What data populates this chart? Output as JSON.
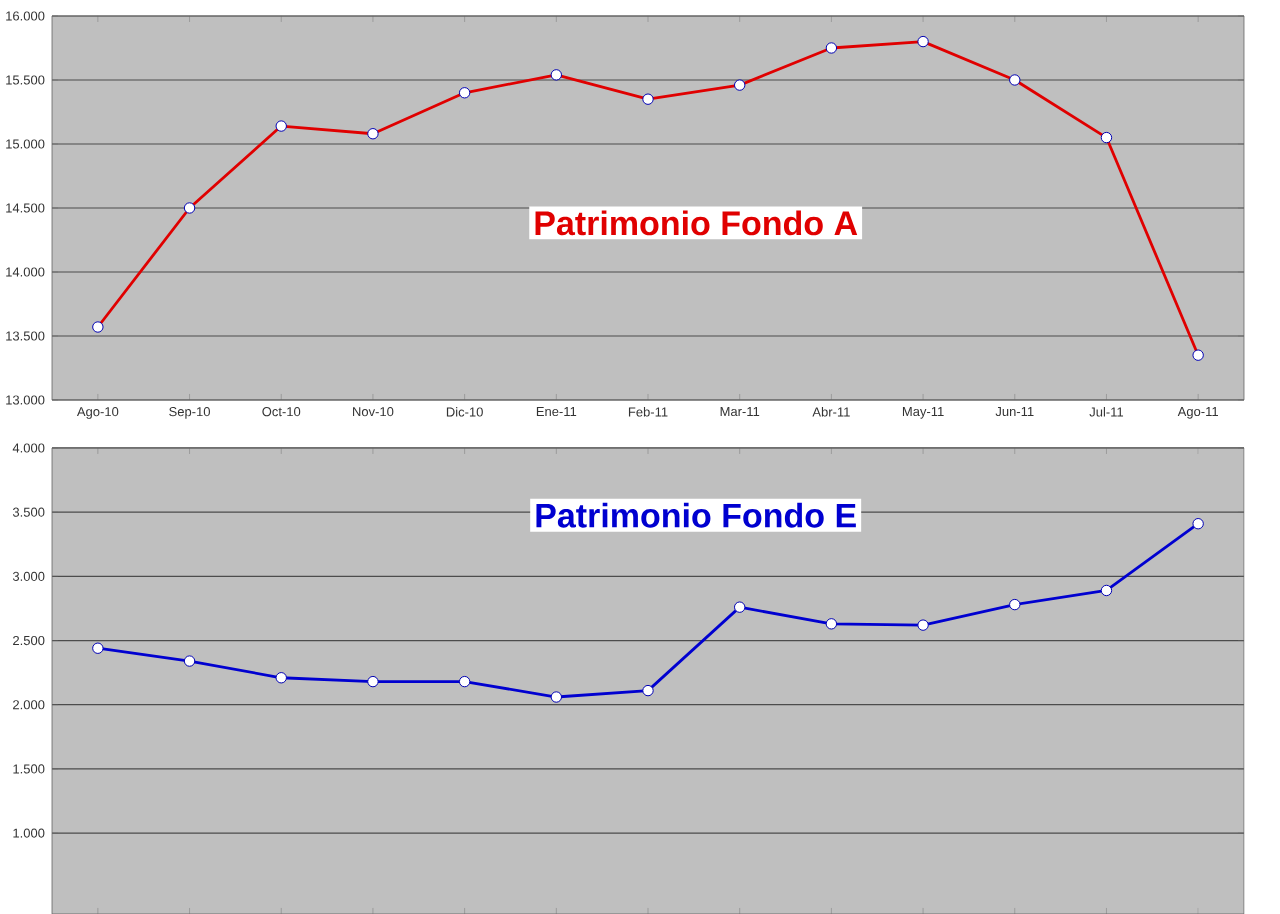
{
  "chart_data": [
    {
      "type": "line",
      "title": "Patrimonio Fondo A",
      "categories": [
        "Ago-10",
        "Sep-10",
        "Oct-10",
        "Nov-10",
        "Dic-10",
        "Ene-11",
        "Feb-11",
        "Mar-11",
        "Abr-11",
        "May-11",
        "Jun-11",
        "Jul-11",
        "Ago-11"
      ],
      "series": [
        {
          "color": "#e00000",
          "values": [
            13570,
            14500,
            15140,
            15080,
            15400,
            15540,
            15350,
            15460,
            15750,
            15800,
            15500,
            15050,
            13350
          ]
        }
      ],
      "ylim": [
        13000,
        16000
      ],
      "yticks": [
        {
          "value": 13000,
          "label": "13.000"
        },
        {
          "value": 13500,
          "label": "13.500"
        },
        {
          "value": 14000,
          "label": "14.000"
        },
        {
          "value": 14500,
          "label": "14.500"
        },
        {
          "value": 15000,
          "label": "15.000"
        },
        {
          "value": 15500,
          "label": "15.500"
        },
        {
          "value": 16000,
          "label": "16.000"
        }
      ],
      "grid": "y",
      "marker": "circle"
    },
    {
      "type": "line",
      "title": "Patrimonio Fondo E",
      "categories": [
        null,
        null,
        null,
        null,
        null,
        null,
        null,
        null,
        null,
        null,
        null,
        null,
        null
      ],
      "series": [
        {
          "color": "#0000d0",
          "values": [
            2440,
            2340,
            2210,
            2180,
            2180,
            2060,
            2110,
            2760,
            2630,
            2620,
            2780,
            2890,
            3410
          ]
        }
      ],
      "ylim": [
        370,
        4000
      ],
      "yticks": [
        {
          "value": 1000,
          "label": "1.000"
        },
        {
          "value": 1500,
          "label": "1.500"
        },
        {
          "value": 2000,
          "label": "2.000"
        },
        {
          "value": 2500,
          "label": "2.500"
        },
        {
          "value": 3000,
          "label": "3.000"
        },
        {
          "value": 3500,
          "label": "3.500"
        },
        {
          "value": 4000,
          "label": "4.000"
        }
      ],
      "grid": "y",
      "marker": "circle",
      "tick_labels": "y"
    }
  ]
}
